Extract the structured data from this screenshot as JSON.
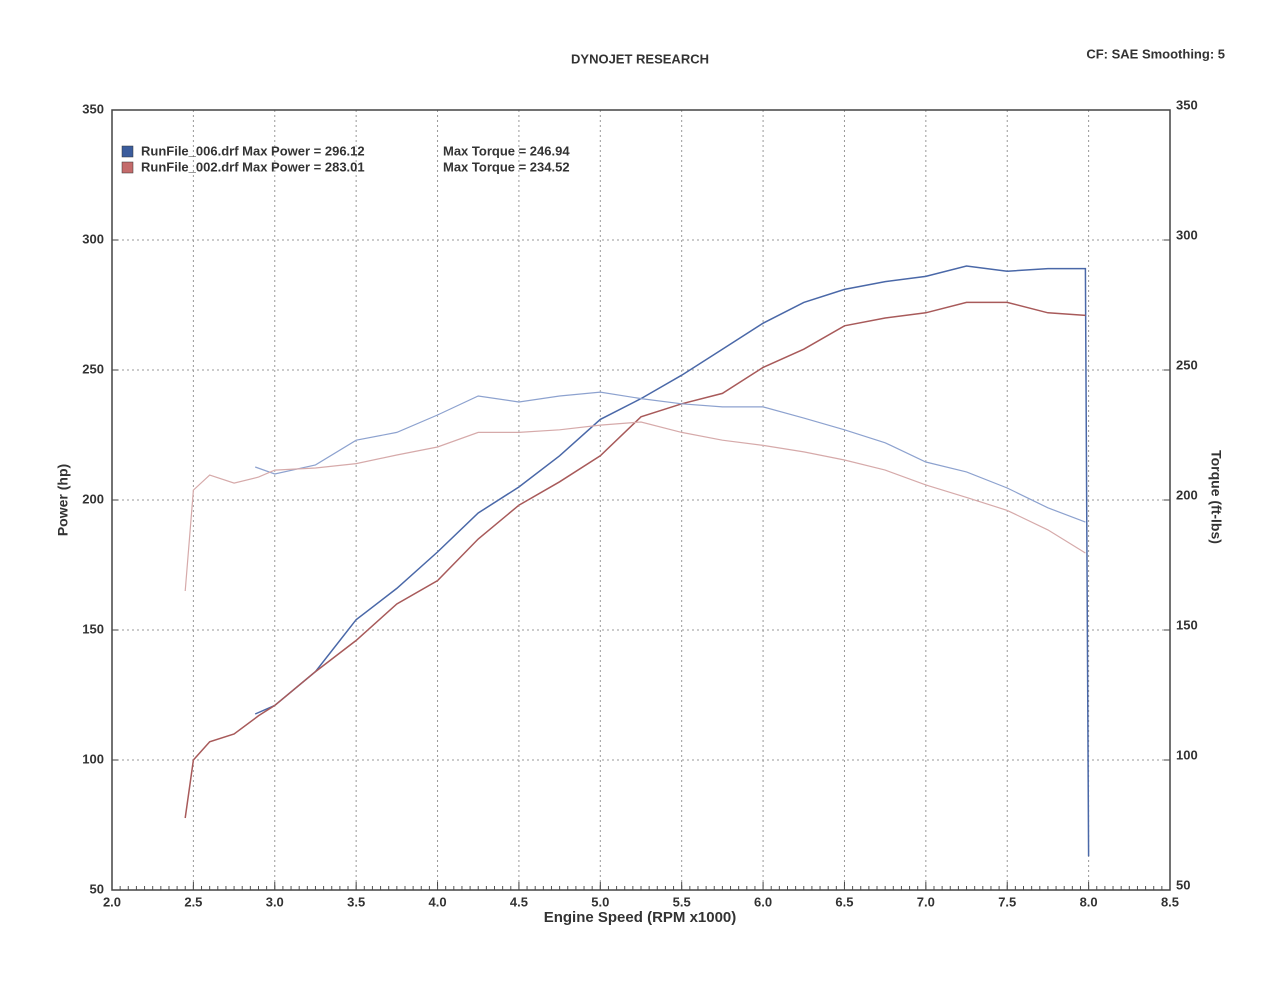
{
  "chart_data": {
    "type": "line",
    "title": "DYNOJET RESEARCH",
    "subtitle": "CF: SAE  Smoothing: 5",
    "x_label": "Engine Speed (RPM x1000)",
    "y_label": "Power (hp)",
    "y2_label": "Torque (ft-lbs)",
    "xlim": [
      2,
      8.5
    ],
    "xticks": [
      {
        "value": 2,
        "label": "2.0"
      },
      2.5,
      {
        "value": 3,
        "label": "3.0"
      },
      3.5,
      {
        "value": 4,
        "label": "4.0"
      },
      4.5,
      {
        "value": 5,
        "label": "5.0"
      },
      5.5,
      {
        "value": 6,
        "label": "6.0"
      },
      6.5,
      {
        "value": 7,
        "label": "7.0"
      },
      7.5,
      {
        "value": 8,
        "label": "8.0"
      },
      8.5
    ],
    "ylim": [
      50,
      350
    ],
    "yticks": [
      50,
      100,
      150,
      200,
      250,
      300,
      350
    ],
    "y2lim": [
      50,
      350
    ],
    "y2ticks": [
      50,
      100,
      150,
      200,
      250,
      300,
      350
    ],
    "grid": true,
    "legend": "upper left",
    "series": [
      {
        "name": "RunFile_006.drf Max Power = 296.12",
        "color": "#4a68a8",
        "legend_color": "#3b5c9c",
        "x": [
          2.88,
          3.0,
          3.25,
          3.5,
          3.75,
          4.0,
          4.25,
          4.5,
          4.75,
          5.0,
          5.25,
          5.5,
          5.75,
          6.0,
          6.25,
          6.5,
          6.75,
          7.0,
          7.25,
          7.5,
          7.75,
          7.98,
          8.0
        ],
        "values": [
          117.7,
          121,
          134,
          154,
          166,
          180,
          195,
          205,
          217,
          231,
          239,
          248,
          258,
          268,
          276,
          281,
          284,
          286,
          290,
          288,
          289,
          289,
          63
        ]
      },
      {
        "name": "RunFile_002.drf Max Power = 283.01",
        "color": "#a85a5a",
        "legend_color": "#c46b6b",
        "x": [
          2.45,
          2.5,
          2.6,
          2.75,
          2.9,
          3.0,
          3.25,
          3.5,
          3.75,
          4.0,
          4.25,
          4.5,
          4.75,
          5.0,
          5.25,
          5.5,
          5.75,
          6.0,
          6.25,
          6.5,
          6.75,
          7.0,
          7.25,
          7.5,
          7.75,
          7.98
        ],
        "values": [
          77.7,
          100,
          107,
          110,
          117,
          121,
          134,
          146,
          160,
          169,
          185,
          198,
          207,
          217,
          232,
          237,
          241,
          251,
          258,
          267,
          270,
          272,
          276,
          276,
          272,
          271
        ]
      },
      {
        "name": "Max Torque = 246.94",
        "color": "#8da2cf",
        "axis": "y2",
        "x": [
          2.88,
          3.0,
          3.25,
          3.5,
          3.75,
          4.0,
          4.25,
          4.5,
          4.75,
          5.0,
          5.25,
          5.5,
          5.75,
          6.0,
          6.25,
          6.5,
          6.75,
          7.0,
          7.25,
          7.5,
          7.75,
          7.98
        ],
        "values": [
          212.7,
          210,
          213.5,
          223,
          226,
          232.7,
          240,
          237.7,
          240,
          241.5,
          239,
          237,
          235.8,
          235.8,
          231.5,
          227,
          222,
          214.6,
          210.8,
          204.6,
          197,
          191.5
        ]
      },
      {
        "name": "Max Torque = 234.52",
        "color": "#d6aaaa",
        "axis": "y2",
        "x": [
          2.45,
          2.5,
          2.6,
          2.75,
          2.9,
          3.0,
          3.25,
          3.5,
          3.75,
          4.0,
          4.25,
          4.5,
          4.75,
          5.0,
          5.25,
          5.5,
          5.75,
          6.0,
          6.25,
          6.5,
          6.75,
          7.0,
          7.25,
          7.5,
          7.75,
          7.98
        ],
        "values": [
          165,
          203.8,
          209.6,
          206.5,
          208.8,
          211.5,
          212.3,
          214,
          217.3,
          220.4,
          226,
          226,
          227,
          228.8,
          230,
          226,
          223,
          221,
          218.5,
          215.4,
          211.5,
          205.8,
          201,
          196,
          188.5,
          179.6
        ]
      }
    ]
  }
}
